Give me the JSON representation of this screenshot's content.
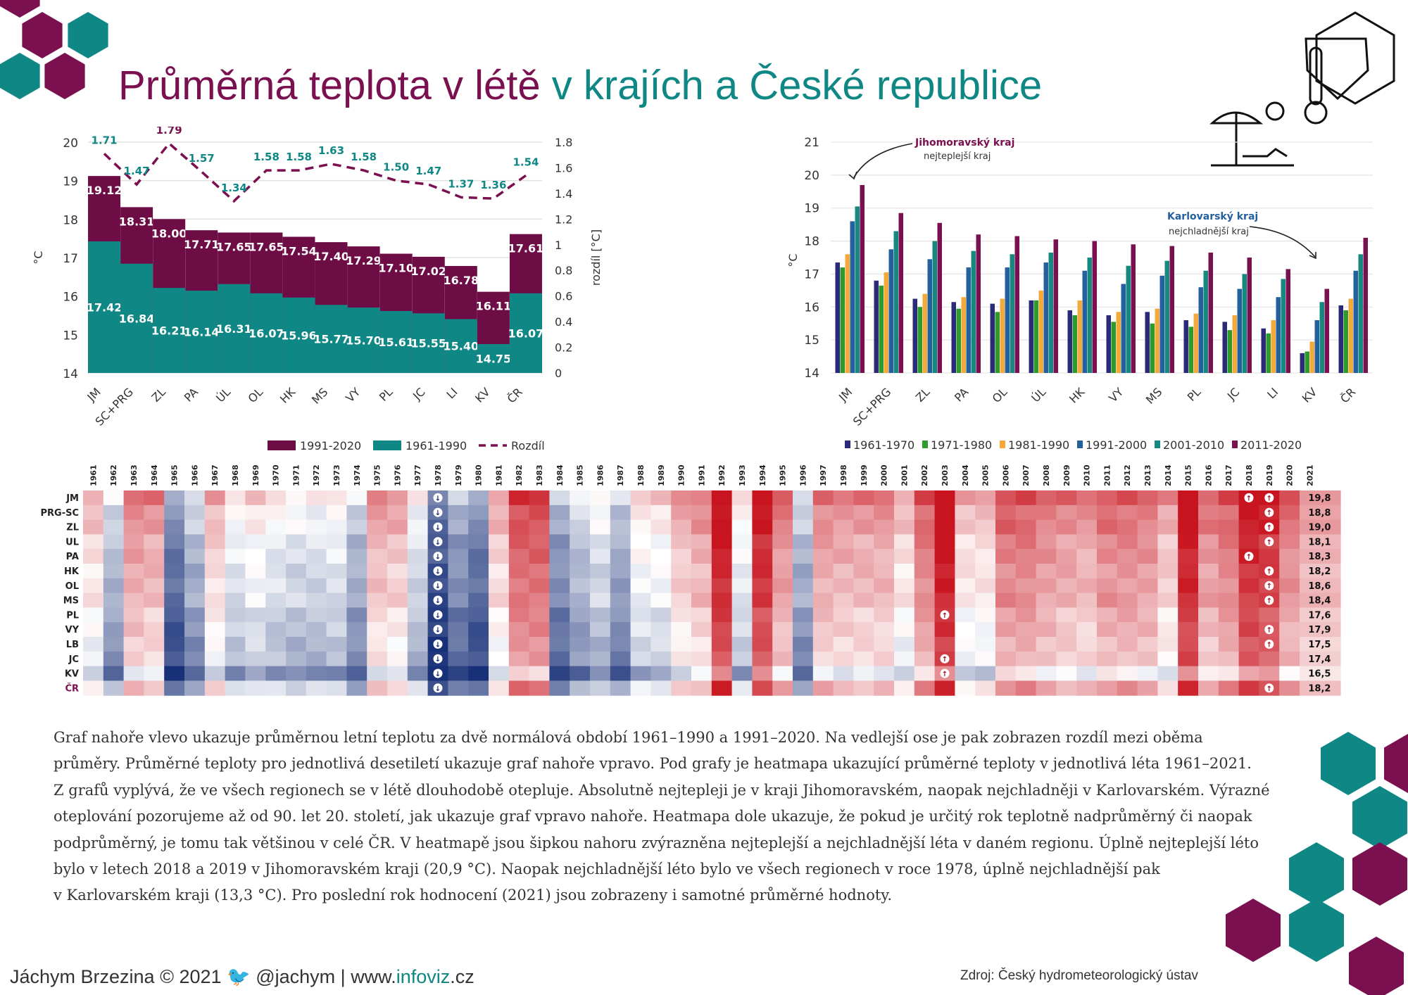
{
  "title": {
    "part1": "Průměrná teplota v létě",
    "part2": "v krajích a České republice"
  },
  "colors": {
    "plum": "#7a1050",
    "teal": "#0f8784"
  },
  "chart_data": [
    {
      "type": "bar",
      "subtype": "overlapping bars with secondary-axis line",
      "categories": [
        "JM",
        "SC+PRG",
        "ZL",
        "PA",
        "ÚL",
        "OL",
        "HK",
        "MS",
        "VY",
        "PL",
        "JC",
        "LI",
        "KV",
        "ČR"
      ],
      "series": [
        {
          "name": "1991-2020",
          "values": [
            19.12,
            18.31,
            18.0,
            17.71,
            17.65,
            17.65,
            17.54,
            17.4,
            17.29,
            17.1,
            17.02,
            16.78,
            16.11,
            17.61
          ],
          "labels": [
            "19.12",
            "18.31",
            "18.00",
            "17.71",
            "17.65",
            "17.65",
            "17.54",
            "17.40",
            "17.29",
            "17.10",
            "17.02",
            "16.78",
            "16.11",
            "17.61"
          ],
          "color": "#6e0c46"
        },
        {
          "name": "1961-1990",
          "values": [
            17.42,
            16.84,
            16.21,
            16.14,
            16.31,
            16.07,
            15.96,
            15.77,
            15.7,
            15.61,
            15.55,
            15.4,
            14.75,
            16.07
          ],
          "labels": [
            "17.42",
            "16.84",
            "16.21",
            "16.14",
            "16.31",
            "16.07",
            "15.96",
            "15.77",
            "15.70",
            "15.61",
            "15.55",
            "15.40",
            "14.75",
            "16.07"
          ],
          "color": "#0f8784"
        },
        {
          "name": "Rozdíl",
          "axis": "right",
          "style": "dashed line",
          "values": [
            1.71,
            1.47,
            1.79,
            1.57,
            1.34,
            1.58,
            1.58,
            1.63,
            1.58,
            1.5,
            1.47,
            1.37,
            1.36,
            1.54
          ],
          "labels": [
            "1.71",
            "1.47",
            "1.79",
            "1.57",
            "1.34",
            "1.58",
            "1.58",
            "1.63",
            "1.58",
            "1.50",
            "1.47",
            "1.37",
            "1.36",
            "1.54"
          ],
          "color": "#7a1050"
        }
      ],
      "ylabel": "°C",
      "y2label": "rozdíl [°C]",
      "ylim": [
        14,
        20
      ],
      "y2lim": [
        0,
        1.8
      ],
      "yticks": [
        "14",
        "15",
        "16",
        "17",
        "18",
        "19",
        "20"
      ],
      "y2ticks": [
        "0",
        "0.2",
        "0.4",
        "0.6",
        "0.8",
        "1",
        "1.2",
        "1.4",
        "1.6",
        "1.8"
      ],
      "legend": [
        "1991-2020",
        "1961-1990",
        "Rozdíl"
      ],
      "legend_position": "bottom",
      "grid": true
    },
    {
      "type": "bar",
      "subtype": "grouped",
      "categories": [
        "JM",
        "SC+PRG",
        "ZL",
        "PA",
        "OL",
        "ÚL",
        "HK",
        "VY",
        "MS",
        "PL",
        "JC",
        "LI",
        "KV",
        "ČR"
      ],
      "series": [
        {
          "name": "1961-1970",
          "color": "#2a2a78",
          "values": [
            17.35,
            16.8,
            16.25,
            16.15,
            16.1,
            16.2,
            15.9,
            15.75,
            15.85,
            15.6,
            15.55,
            15.35,
            14.6,
            16.05
          ]
        },
        {
          "name": "1971-1980",
          "color": "#2e9a2e",
          "values": [
            17.2,
            16.65,
            16.0,
            15.95,
            15.85,
            16.2,
            15.75,
            15.55,
            15.5,
            15.4,
            15.3,
            15.2,
            14.65,
            15.9
          ]
        },
        {
          "name": "1981-1990",
          "color": "#f4a93b",
          "values": [
            17.6,
            17.05,
            16.4,
            16.3,
            16.25,
            16.5,
            16.2,
            15.85,
            15.95,
            15.8,
            15.75,
            15.6,
            14.95,
            16.25
          ]
        },
        {
          "name": "1991-2000",
          "color": "#24609e",
          "values": [
            18.6,
            17.75,
            17.45,
            17.2,
            17.2,
            17.35,
            17.1,
            16.7,
            16.95,
            16.6,
            16.55,
            16.3,
            15.6,
            17.1
          ]
        },
        {
          "name": "2001-2010",
          "color": "#168880",
          "values": [
            19.05,
            18.3,
            18.0,
            17.7,
            17.6,
            17.65,
            17.5,
            17.25,
            17.4,
            17.1,
            17.0,
            16.85,
            16.15,
            17.6
          ]
        },
        {
          "name": "2011-2020",
          "color": "#7a1050",
          "values": [
            19.7,
            18.85,
            18.55,
            18.2,
            18.15,
            18.05,
            18.0,
            17.9,
            17.85,
            17.65,
            17.5,
            17.15,
            16.55,
            18.1
          ]
        }
      ],
      "ylabel": "°C",
      "ylim": [
        14,
        21
      ],
      "yticks": [
        "14",
        "15",
        "16",
        "17",
        "18",
        "19",
        "20",
        "21"
      ],
      "annotations": [
        {
          "title": "Jihomoravský kraj",
          "text": "nejteplejší kraj"
        },
        {
          "title": "Karlovarský kraj",
          "text": "nejchladnější kraj"
        }
      ],
      "legend_position": "bottom",
      "grid": true
    },
    {
      "type": "heatmap",
      "years": [
        "1961",
        "1962",
        "1963",
        "1964",
        "1965",
        "1966",
        "1967",
        "1968",
        "1969",
        "1970",
        "1971",
        "1972",
        "1973",
        "1974",
        "1975",
        "1976",
        "1977",
        "1978",
        "1979",
        "1980",
        "1981",
        "1982",
        "1983",
        "1984",
        "1985",
        "1986",
        "1987",
        "1988",
        "1989",
        "1990",
        "1991",
        "1992",
        "1993",
        "1994",
        "1995",
        "1996",
        "1997",
        "1998",
        "1999",
        "2000",
        "2001",
        "2002",
        "2003",
        "2004",
        "2005",
        "2006",
        "2007",
        "2008",
        "2009",
        "2010",
        "2011",
        "2012",
        "2013",
        "2014",
        "2015",
        "2016",
        "2017",
        "2018",
        "2019",
        "2020",
        "2021"
      ],
      "regions": [
        "JM",
        "PRG-SC",
        "ZL",
        "UL",
        "PA",
        "HK",
        "OL",
        "MS",
        "PL",
        "VY",
        "LB",
        "JC",
        "KV",
        "ČR"
      ],
      "year_anomaly": [
        0.1,
        -0.35,
        0.35,
        0.3,
        -0.7,
        -0.4,
        0.15,
        -0.15,
        -0.05,
        -0.15,
        -0.2,
        -0.2,
        -0.15,
        -0.4,
        0.25,
        0.2,
        -0.2,
        -0.85,
        -0.55,
        -0.7,
        0.15,
        0.6,
        0.6,
        -0.55,
        -0.35,
        -0.2,
        -0.45,
        -0.05,
        -0.05,
        0.2,
        0.3,
        0.9,
        -0.1,
        0.85,
        0.4,
        -0.4,
        0.35,
        0.3,
        0.3,
        0.3,
        0.1,
        0.5,
        0.95,
        0.1,
        0.1,
        0.5,
        0.5,
        0.4,
        0.35,
        0.3,
        0.45,
        0.45,
        0.4,
        0.2,
        0.9,
        0.4,
        0.5,
        0.85,
        0.8,
        0.45,
        0.5
      ],
      "region_offset": [
        0.3,
        0.15,
        0.15,
        0.05,
        0.05,
        0.0,
        0.0,
        0.0,
        -0.1,
        -0.1,
        -0.15,
        -0.15,
        -0.4,
        0.0
      ],
      "hottest_marks": [
        [
          "JM",
          "2018"
        ],
        [
          "JM",
          "2019"
        ],
        [
          "PRG-SC",
          "2019"
        ],
        [
          "ZL",
          "2019"
        ],
        [
          "UL",
          "2019"
        ],
        [
          "PA",
          "2018"
        ],
        [
          "HK",
          "2019"
        ],
        [
          "OL",
          "2019"
        ],
        [
          "MS",
          "2019"
        ],
        [
          "PL",
          "2003"
        ],
        [
          "VY",
          "2019"
        ],
        [
          "LB",
          "2019"
        ],
        [
          "JC",
          "2003"
        ],
        [
          "KV",
          "2003"
        ],
        [
          "ČR",
          "2019"
        ]
      ],
      "coldest_year": "1978",
      "last_year_values": [
        "19,8",
        "18,8",
        "19,0",
        "18,1",
        "18,3",
        "18,2",
        "18,6",
        "18,4",
        "17,6",
        "17,9",
        "17,5",
        "17,4",
        "16,5",
        "18,2"
      ]
    }
  ],
  "body_text": [
    "Graf nahoře vlevo ukazuje průměrnou letní teplotu za dvě normálová období 1961–1990 a 1991–2020. Na vedlejší ose je pak zobrazen rozdíl mezi oběma",
    "průměry. Průměrné teploty pro jednotlivá desetiletí ukazuje graf nahoře vpravo. Pod grafy je heatmapa ukazující průměrné teploty v jednotlivá léta 1961–2021.",
    "Z grafů vyplývá, že ve všech regionech se v létě dlouhodobě otepluje. Absolutně nejtepleji je v kraji Jihomoravském, naopak nejchladněji v Karlovarském. Výrazné",
    "oteplování pozorujeme až od 90. let 20. století, jak ukazuje graf vpravo nahoře. Heatmapa dole ukazuje, že pokud je určitý rok teplotně nadprůměrný či naopak",
    "podprůměrný, je tomu tak většinou v celé ČR. V heatmapě jsou šipkou nahoru zvýrazněna nejteplejší a nejchladnější léta v daném regionu. Úplně nejteplejší léto",
    "bylo v letech 2018 a 2019 v Jihomoravském kraji (20,9 °C). Naopak nejchladnější léto bylo ve všech regionech v roce 1978, úplně nejchladnější pak",
    "v Karlovarském kraji (13,3 °C). Pro poslední rok hodnocení (2021) jsou zobrazeny i samotné průměrné hodnoty."
  ],
  "footer": {
    "author": "Jáchym Brzezina © 2021",
    "twitter": "@jachym",
    "separator": "|",
    "web_pre": "www.",
    "web_accent": "infoviz",
    "web_post": ".cz",
    "source": "Zdroj: Český hydrometeorologický ústav"
  }
}
